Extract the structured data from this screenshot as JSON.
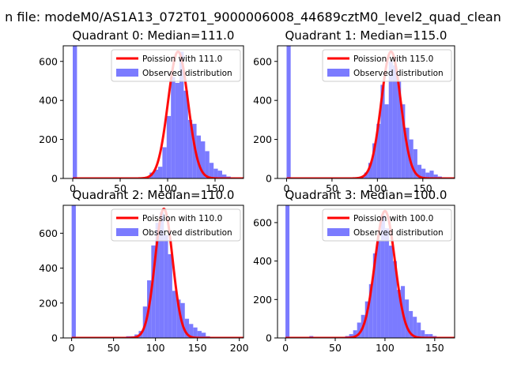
{
  "figure": {
    "suptitle": "n file: modeM0/AS1A13_072T01_9000006008_44689cztM0_level2_quad_clean",
    "colors": {
      "poisson": "#ff0000",
      "observed": "#7b7bff",
      "axis": "#000000"
    }
  },
  "chart_data": [
    {
      "type": "bar",
      "title": "Quadrant 0: Median=111.0",
      "legend": [
        "Poission with 111.0",
        "Observed distribution"
      ],
      "legend_position": "top-right",
      "xlim": [
        -10,
        180
      ],
      "ylim": [
        0,
        680
      ],
      "xticks": [
        0,
        50,
        100,
        150
      ],
      "yticks": [
        0,
        200,
        400,
        600
      ],
      "poisson_mean": 111.0,
      "poisson_peak": 650,
      "bin_width": 4.5,
      "bins": [
        [
          0,
          680
        ],
        [
          4.5,
          0
        ],
        [
          9,
          0
        ],
        [
          13.5,
          0
        ],
        [
          18,
          0
        ],
        [
          22.5,
          0
        ],
        [
          27,
          0
        ],
        [
          31.5,
          0
        ],
        [
          36,
          0
        ],
        [
          40.5,
          0
        ],
        [
          45,
          0
        ],
        [
          49.5,
          0
        ],
        [
          54,
          0
        ],
        [
          58.5,
          0
        ],
        [
          63,
          0
        ],
        [
          67.5,
          0
        ],
        [
          72,
          0
        ],
        [
          76.5,
          0
        ],
        [
          81,
          30
        ],
        [
          85.5,
          45
        ],
        [
          90,
          60
        ],
        [
          94.5,
          160
        ],
        [
          99,
          320
        ],
        [
          103.5,
          520
        ],
        [
          108,
          490
        ],
        [
          112.5,
          650
        ],
        [
          117,
          450
        ],
        [
          121.5,
          300
        ],
        [
          126,
          280
        ],
        [
          130.5,
          220
        ],
        [
          135,
          190
        ],
        [
          139.5,
          140
        ],
        [
          144,
          80
        ],
        [
          148.5,
          50
        ],
        [
          153,
          40
        ],
        [
          157.5,
          20
        ],
        [
          162,
          10
        ],
        [
          166.5,
          5
        ]
      ]
    },
    {
      "type": "bar",
      "title": "Quadrant 1: Median=115.0",
      "legend": [
        "Poission with 115.0",
        "Observed distribution"
      ],
      "legend_position": "top-right",
      "xlim": [
        -10,
        185
      ],
      "ylim": [
        0,
        680
      ],
      "xticks": [
        0,
        50,
        100,
        150
      ],
      "yticks": [
        0,
        200,
        400,
        600
      ],
      "poisson_mean": 115.0,
      "poisson_peak": 650,
      "bin_width": 4.5,
      "bins": [
        [
          0,
          680
        ],
        [
          4.5,
          0
        ],
        [
          9,
          0
        ],
        [
          13.5,
          0
        ],
        [
          18,
          0
        ],
        [
          22.5,
          0
        ],
        [
          27,
          0
        ],
        [
          31.5,
          0
        ],
        [
          36,
          0
        ],
        [
          40.5,
          0
        ],
        [
          45,
          0
        ],
        [
          49.5,
          0
        ],
        [
          54,
          0
        ],
        [
          58.5,
          0
        ],
        [
          63,
          0
        ],
        [
          67.5,
          0
        ],
        [
          72,
          0
        ],
        [
          76.5,
          0
        ],
        [
          81,
          10
        ],
        [
          85.5,
          30
        ],
        [
          90,
          80
        ],
        [
          94.5,
          180
        ],
        [
          99,
          280
        ],
        [
          103.5,
          480
        ],
        [
          108,
          380
        ],
        [
          112.5,
          600
        ],
        [
          117,
          580
        ],
        [
          121.5,
          500
        ],
        [
          126,
          380
        ],
        [
          130.5,
          260
        ],
        [
          135,
          200
        ],
        [
          139.5,
          150
        ],
        [
          144,
          70
        ],
        [
          148.5,
          50
        ],
        [
          153,
          30
        ],
        [
          157.5,
          40
        ],
        [
          162,
          20
        ],
        [
          166.5,
          10
        ],
        [
          171,
          5
        ]
      ]
    },
    {
      "type": "bar",
      "title": "Quadrant 2: Median=110.0",
      "legend": [
        "Poission with 110.0",
        "Observed distribution"
      ],
      "legend_position": "top-right",
      "xlim": [
        -10,
        205
      ],
      "ylim": [
        0,
        760
      ],
      "xticks": [
        0,
        50,
        100,
        150,
        200
      ],
      "yticks": [
        0,
        200,
        400,
        600
      ],
      "poisson_mean": 110.0,
      "poisson_peak": 740,
      "bin_width": 5,
      "bins": [
        [
          0,
          760
        ],
        [
          5,
          0
        ],
        [
          10,
          0
        ],
        [
          15,
          0
        ],
        [
          20,
          0
        ],
        [
          25,
          0
        ],
        [
          30,
          0
        ],
        [
          35,
          0
        ],
        [
          40,
          0
        ],
        [
          45,
          0
        ],
        [
          50,
          0
        ],
        [
          55,
          0
        ],
        [
          60,
          5
        ],
        [
          65,
          10
        ],
        [
          70,
          10
        ],
        [
          75,
          20
        ],
        [
          80,
          40
        ],
        [
          85,
          180
        ],
        [
          90,
          330
        ],
        [
          95,
          530
        ],
        [
          100,
          660
        ],
        [
          105,
          720
        ],
        [
          110,
          590
        ],
        [
          115,
          480
        ],
        [
          120,
          270
        ],
        [
          125,
          220
        ],
        [
          130,
          200
        ],
        [
          135,
          110
        ],
        [
          140,
          80
        ],
        [
          145,
          60
        ],
        [
          150,
          40
        ],
        [
          155,
          30
        ],
        [
          160,
          10
        ],
        [
          165,
          5
        ],
        [
          170,
          2
        ],
        [
          175,
          2
        ],
        [
          180,
          1
        ],
        [
          185,
          1
        ],
        [
          190,
          1
        ]
      ]
    },
    {
      "type": "bar",
      "title": "Quadrant 3: Median=100.0",
      "legend": [
        "Poission with 100.0",
        "Observed distribution"
      ],
      "legend_position": "top-right",
      "xlim": [
        -8,
        170
      ],
      "ylim": [
        0,
        690
      ],
      "xticks": [
        0,
        50,
        100,
        150
      ],
      "yticks": [
        0,
        200,
        400,
        600
      ],
      "poisson_mean": 100.0,
      "poisson_peak": 660,
      "bin_width": 4,
      "bins": [
        [
          0,
          690
        ],
        [
          4,
          0
        ],
        [
          8,
          0
        ],
        [
          12,
          0
        ],
        [
          16,
          0
        ],
        [
          20,
          0
        ],
        [
          24,
          10
        ],
        [
          28,
          0
        ],
        [
          32,
          0
        ],
        [
          36,
          0
        ],
        [
          40,
          0
        ],
        [
          44,
          0
        ],
        [
          48,
          0
        ],
        [
          52,
          0
        ],
        [
          56,
          5
        ],
        [
          60,
          10
        ],
        [
          64,
          20
        ],
        [
          68,
          40
        ],
        [
          72,
          80
        ],
        [
          76,
          120
        ],
        [
          80,
          190
        ],
        [
          84,
          280
        ],
        [
          88,
          440
        ],
        [
          92,
          510
        ],
        [
          96,
          640
        ],
        [
          100,
          570
        ],
        [
          104,
          480
        ],
        [
          108,
          400
        ],
        [
          112,
          250
        ],
        [
          116,
          270
        ],
        [
          120,
          200
        ],
        [
          124,
          140
        ],
        [
          128,
          110
        ],
        [
          132,
          80
        ],
        [
          136,
          40
        ],
        [
          140,
          20
        ],
        [
          144,
          20
        ],
        [
          148,
          10
        ],
        [
          152,
          5
        ]
      ]
    }
  ]
}
